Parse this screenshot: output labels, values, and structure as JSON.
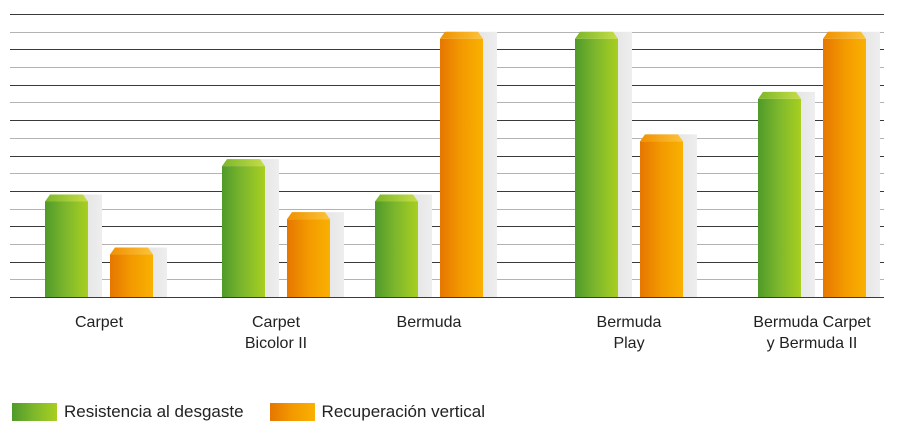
{
  "chart_data": {
    "type": "bar",
    "categories": [
      [
        "Carpet"
      ],
      [
        "Carpet",
        "Bicolor II"
      ],
      [
        "Bermuda"
      ],
      [
        "Bermuda",
        "Play"
      ],
      [
        "Bermuda Carpet",
        "y Bermuda II"
      ]
    ],
    "series": [
      {
        "name": "Resistencia al desgaste",
        "values": [
          2.7,
          3.7,
          2.7,
          7.3,
          5.6
        ]
      },
      {
        "name": "Recuperación vertical",
        "values": [
          1.2,
          2.2,
          7.3,
          4.4,
          7.3
        ]
      }
    ],
    "ylim": [
      0,
      8
    ],
    "grid": true,
    "legend_position": "bottom-left",
    "colors": {
      "series_1": [
        "#4f9a2a",
        "#a8cf20"
      ],
      "series_2": [
        "#e67600",
        "#f9b100"
      ]
    }
  }
}
